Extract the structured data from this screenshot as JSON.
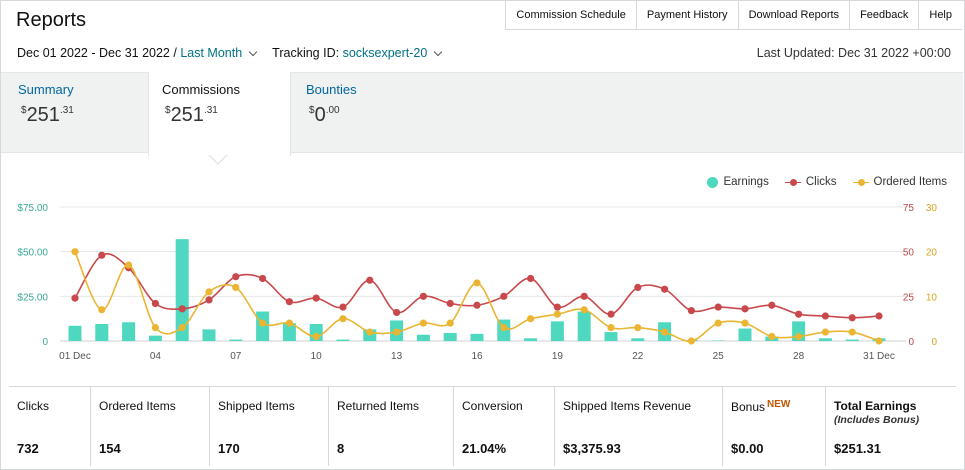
{
  "header": {
    "title": "Reports",
    "nav": [
      "Commission Schedule",
      "Payment History",
      "Download Reports",
      "Feedback",
      "Help"
    ]
  },
  "filters": {
    "date_range": "Dec 01 2022 - Dec 31 2022 /",
    "date_preset": "Last Month",
    "tracking_label": "Tracking ID:",
    "tracking_id": "socksexpert-20",
    "last_updated": "Last Updated: Dec 31 2022 +00:00"
  },
  "tabs": [
    {
      "label": "Summary",
      "currency": "$",
      "whole": "251",
      "cents": ".31"
    },
    {
      "label": "Commissions",
      "currency": "$",
      "whole": "251",
      "cents": ".31"
    },
    {
      "label": "Bounties",
      "currency": "$",
      "whole": "0",
      "cents": ".00"
    }
  ],
  "legend": {
    "earnings": "Earnings",
    "clicks": "Clicks",
    "ordered": "Ordered Items"
  },
  "colors": {
    "earnings": "#4fd8c0",
    "clicks": "#c8484c",
    "ordered": "#eab532",
    "link": "#007185"
  },
  "chart_data": {
    "type": "bar+line",
    "x_tick_labels": [
      "01 Dec",
      "04",
      "07",
      "10",
      "13",
      "16",
      "19",
      "22",
      "25",
      "28",
      "31 Dec"
    ],
    "x_tick_days": [
      1,
      4,
      7,
      10,
      13,
      16,
      19,
      22,
      25,
      28,
      31
    ],
    "y_left_ticks": [
      "$75.00",
      "$50.00",
      "$25.00",
      "0"
    ],
    "y_left_range": [
      0,
      75
    ],
    "y_right1_ticks": [
      "75",
      "50",
      "25",
      "0"
    ],
    "y_right1_range": [
      0,
      75
    ],
    "y_right2_ticks": [
      "30",
      "20",
      "10",
      "0"
    ],
    "y_right2_range": [
      0,
      30
    ],
    "grid": true,
    "legend_position": "top-right",
    "series": [
      {
        "name": "Earnings",
        "kind": "bar",
        "axis": "left",
        "values": [
          8.5,
          9.5,
          10.5,
          3,
          57,
          6.5,
          0.8,
          16.5,
          10,
          9.5,
          0.8,
          6.5,
          11.5,
          3.5,
          4.5,
          4,
          12,
          1.5,
          11,
          16.5,
          5,
          1.5,
          10.5,
          0.5,
          0.3,
          7,
          2.5,
          11,
          1.5,
          0.8,
          1.5
        ]
      },
      {
        "name": "Clicks",
        "kind": "line",
        "axis": "right1",
        "values": [
          24,
          48,
          41,
          21,
          18,
          23,
          36,
          35,
          22,
          24,
          19,
          34,
          16,
          25,
          21,
          20,
          25,
          35,
          19,
          25,
          15,
          30,
          29,
          17,
          19,
          18,
          20,
          15,
          14,
          13,
          14
        ]
      },
      {
        "name": "Ordered Items",
        "kind": "line",
        "axis": "right2",
        "values": [
          20,
          7,
          17,
          3,
          3,
          11,
          12,
          4,
          4,
          1,
          5,
          2,
          2,
          4,
          4,
          13,
          3,
          5,
          6,
          7,
          3,
          3,
          2,
          0,
          4,
          4,
          1,
          1,
          2,
          2,
          0
        ]
      }
    ]
  },
  "stats": [
    {
      "label": "Clicks",
      "value": "732"
    },
    {
      "label": "Ordered Items",
      "value": "154"
    },
    {
      "label": "Shipped Items",
      "value": "170"
    },
    {
      "label": "Returned Items",
      "value": "8"
    },
    {
      "label": "Conversion",
      "value": "21.04%"
    },
    {
      "label": "Shipped Items Revenue",
      "value": "$3,375.93"
    },
    {
      "label": "Bonus",
      "badge": "NEW",
      "value": "$0.00"
    },
    {
      "label": "Total Earnings",
      "sub": "(Includes Bonus)",
      "value": "$251.31"
    }
  ]
}
